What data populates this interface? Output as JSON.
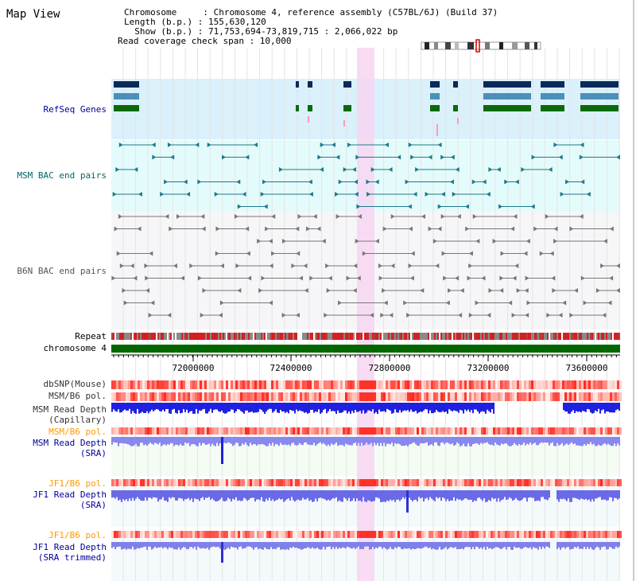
{
  "view_title": "Map View",
  "header": {
    "chromosome_line": "Chromosome     : Chromosome 4, reference assembly (C57BL/6J) (Build 37)",
    "length_line": "Length (b.p.) : 155,630,120",
    "show_line": "  Show (b.p.) : 71,753,694-73,819,715 : 2,066,022 bp",
    "coverage_line": "Read coverage check span : 10,000"
  },
  "tracks": {
    "refseq": "RefSeq Genes",
    "msm_bac": "MSM BAC end pairs",
    "b6n_bac": "B6N BAC end pairs",
    "repeat": "Repeat",
    "chromosome": "chromosome 4",
    "dbsnp": "dbSNP(Mouse)",
    "msm_b6_pol_1": "MSM/B6 pol.",
    "msm_read_depth_cap_1": "MSM Read Depth",
    "msm_read_depth_cap_2": "(Capillary)",
    "msm_b6_pol_2": "MSM/B6 pol.",
    "msm_read_depth_sra_1": "MSM Read Depth",
    "msm_read_depth_sra_2": "(SRA)",
    "jf1_b6_pol_1": "JF1/B6 pol.",
    "jf1_read_depth_sra_1": "JF1 Read Depth",
    "jf1_read_depth_sra_2": "(SRA)",
    "jf1_b6_pol_2": "JF1/B6 pol.",
    "jf1_read_depth_trim_1": "JF1 Read Depth",
    "jf1_read_depth_trim_2": "(SRA trimmed)"
  },
  "axis": {
    "ticks": [
      "72000000",
      "72400000",
      "72800000",
      "73200000",
      "73600000"
    ]
  },
  "colors": {
    "refseq_label": "#000099",
    "msm_bac_label": "#006666",
    "b6n_bac_label": "#555555",
    "pol_label_orange": "#ff9900",
    "read_depth_label": "#000099",
    "highlight": "#f7d6f2",
    "chromosome_bar": "#006600",
    "refseq_bg": "#daf0fb",
    "msm_bac_bg": "#e4fbfb",
    "b6n_bg": "#f6f6f8",
    "depth_bg": "#f3fdf3"
  }
}
